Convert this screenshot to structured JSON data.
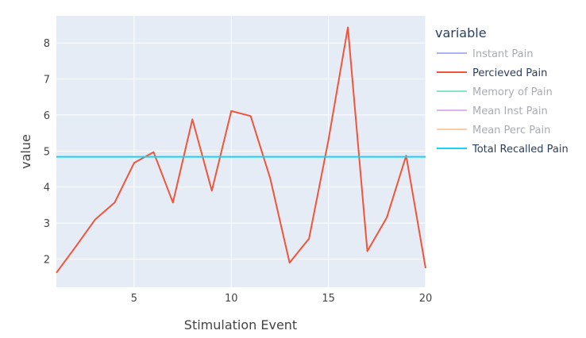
{
  "chart_data": {
    "type": "line",
    "xlabel": "Stimulation Event",
    "ylabel": "value",
    "xlim": [
      1,
      20
    ],
    "ylim": [
      1.22,
      8.75
    ],
    "x_ticks": [
      5,
      10,
      15,
      20
    ],
    "y_ticks": [
      2,
      3,
      4,
      5,
      6,
      7,
      8
    ],
    "grid": true,
    "legend": {
      "title": "variable",
      "placement": "right"
    },
    "series": [
      {
        "name": "Instant Pain",
        "color": "#aab4f5",
        "visible": false
      },
      {
        "name": "Percieved Pain",
        "color": "#ef553b",
        "visible": true,
        "x": [
          1,
          2,
          3,
          4,
          5,
          6,
          7,
          8,
          9,
          10,
          11,
          12,
          13,
          14,
          15,
          16,
          17,
          18,
          19,
          20
        ],
        "values": [
          1.62,
          2.35,
          3.1,
          3.57,
          4.67,
          4.97,
          3.57,
          5.88,
          3.9,
          6.11,
          5.97,
          4.25,
          1.9,
          2.57,
          5.3,
          8.43,
          2.22,
          3.15,
          4.87,
          1.75
        ]
      },
      {
        "name": "Memory of Pain",
        "color": "#86e6c4",
        "visible": false
      },
      {
        "name": "Mean Inst Pain",
        "color": "#dcb4f2",
        "visible": false
      },
      {
        "name": "Mean Perc Pain",
        "color": "#ffcca8",
        "visible": false
      },
      {
        "name": "Total Recalled Pain",
        "color": "#19d3f3",
        "visible": true,
        "x": [
          1,
          20
        ],
        "values": [
          4.84,
          4.84
        ]
      }
    ]
  },
  "style": {
    "plot_bg": "#e5ecf6",
    "grid_color": "#ffffff",
    "hidden_text_color": "#a8adb4",
    "visible_text_color": "#2a3f5f"
  }
}
